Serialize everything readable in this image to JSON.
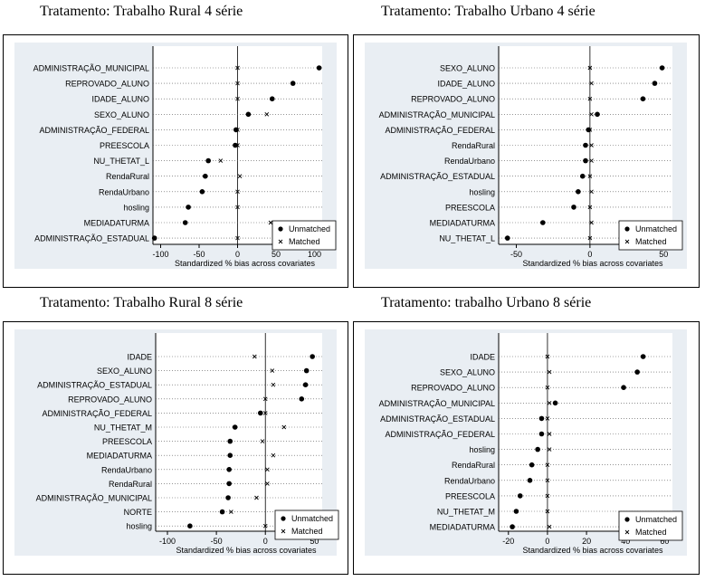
{
  "titles": [
    "Tratamento: Trabalho Rural   4 série",
    "Tratamento: Trabalho Urbano 4 série",
    "Tratamento: Trabalho Rural 8 série",
    "Tratamento: trabalho Urbano 8 série"
  ],
  "colors": {
    "plot_bg": "#e9eef3",
    "outer_bg": "#ffffff",
    "dots": "#000000",
    "zero_line": "#000000"
  },
  "chart_data": [
    {
      "type": "scatter",
      "title": "Tratamento: Trabalho Rural   4 série",
      "xlabel": "Standardized % bias across covariates",
      "xlim": [
        -110,
        110
      ],
      "xticks": [
        -100,
        -50,
        0,
        50,
        100
      ],
      "legend": [
        "Unmatched",
        "Matched"
      ],
      "legend_position": "bottom-right",
      "grid": "dotted-horizontal",
      "categories": [
        "ADMINISTRAÇÃO_MUNICIPAL",
        "REPROVADO_ALUNO",
        "IDADE_ALUNO",
        "SEXO_ALUNO",
        "ADMINISTRAÇÃO_FEDERAL",
        "PREESCOLA",
        "NU_THETAT_L",
        "RendaRural",
        "RendaUrbano",
        "hosling",
        "MEDIADATURMA",
        "ADMINISTRAÇÃO_ESTADUAL"
      ],
      "series": [
        {
          "name": "Unmatched",
          "values": [
            106,
            72,
            45,
            14,
            -2,
            -3,
            -38,
            -42,
            -46,
            -64,
            -68,
            -108
          ]
        },
        {
          "name": "Matched",
          "values": [
            0,
            0,
            0,
            38,
            0,
            0,
            -22,
            3,
            0,
            0,
            43,
            0
          ]
        }
      ]
    },
    {
      "type": "scatter",
      "title": "Tratamento: Trabalho Urbano 4 série",
      "xlabel": "Standardized % bias across covariates",
      "xlim": [
        -62,
        56
      ],
      "xticks": [
        -50,
        0,
        50
      ],
      "legend": [
        "Unmatched",
        "Matched"
      ],
      "legend_position": "bottom-right",
      "grid": "dotted-horizontal",
      "categories": [
        "SEXO_ALUNO",
        "IDADE_ALUNO",
        "REPROVADO_ALUNO",
        "ADMINISTRAÇÃO_MUNICIPAL",
        "ADMINISTRAÇÃO_FEDERAL",
        "RendaRural",
        "RendaUrbano",
        "ADMINISTRAÇÃO_ESTADUAL",
        "hosling",
        "PREESCOLA",
        "MEDIADATURMA",
        "NU_THETAT_L"
      ],
      "series": [
        {
          "name": "Unmatched",
          "values": [
            49,
            44,
            36,
            5,
            -1,
            -3,
            -3,
            -5,
            -8,
            -11,
            -32,
            -56
          ]
        },
        {
          "name": "Matched",
          "values": [
            0,
            1,
            0,
            1,
            0,
            1,
            1,
            0,
            1,
            0,
            1,
            0
          ]
        }
      ]
    },
    {
      "type": "scatter",
      "title": "Tratamento: Trabalho Rural 8 série",
      "xlabel": "Standardized % bias across covariates",
      "xlim": [
        -112,
        58
      ],
      "xticks": [
        -100,
        -50,
        0,
        50
      ],
      "legend": [
        "Unmatched",
        "Matched"
      ],
      "legend_position": "bottom-right",
      "grid": "dotted-horizontal",
      "categories": [
        "IDADE",
        "SEXO_ALUNO",
        "ADMINISTRAÇÃO_ESTADUAL",
        "REPROVADO_ALUNO",
        "ADMINISTRAÇÃO_FEDERAL",
        "NU_THETAT_M",
        "PREESCOLA",
        "MEDIADATURMA",
        "RendaUrbano",
        "RendaRural",
        "ADMINISTRAÇÃO_MUNICIPAL",
        "NORTE",
        "hosling"
      ],
      "series": [
        {
          "name": "Unmatched",
          "values": [
            48,
            42,
            41,
            37,
            -5,
            -31,
            -36,
            -36,
            -37,
            -37,
            -38,
            -44,
            -77
          ]
        },
        {
          "name": "Matched",
          "values": [
            -11,
            7,
            8,
            0,
            0,
            19,
            -3,
            8,
            2,
            2,
            -9,
            -35,
            0
          ]
        }
      ]
    },
    {
      "type": "scatter",
      "title": "Tratamento: trabalho Urbano 8 série",
      "xlabel": "Standardized % bias across covariates",
      "xlim": [
        -25,
        64
      ],
      "xticks": [
        -20,
        0,
        20,
        40,
        60
      ],
      "legend": [
        "Unmatched",
        "Matched"
      ],
      "legend_position": "bottom-right",
      "grid": "dotted-horizontal",
      "categories": [
        "IDADE",
        "SEXO_ALUNO",
        "REPROVADO_ALUNO",
        "ADMINISTRAÇÃO_MUNICIPAL",
        "ADMINISTRAÇÃO_ESTADUAL",
        "ADMINISTRAÇÃO_FEDERAL",
        "hosling",
        "RendaRural",
        "RendaUrbano",
        "PREESCOLA",
        "NU_THETAT_M",
        "MEDIADATURMA"
      ],
      "series": [
        {
          "name": "Unmatched",
          "values": [
            49,
            46,
            39,
            4,
            -3,
            -3,
            -5,
            -8,
            -9,
            -14,
            -16,
            -18
          ]
        },
        {
          "name": "Matched",
          "values": [
            0,
            1,
            0,
            1,
            0,
            1,
            1,
            0,
            0,
            0,
            0,
            1
          ]
        }
      ]
    }
  ]
}
